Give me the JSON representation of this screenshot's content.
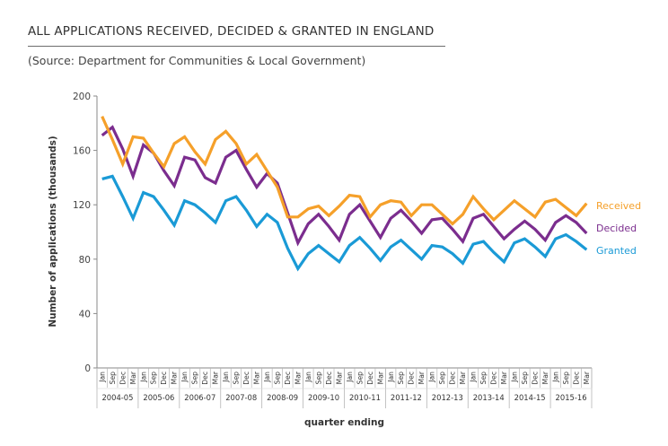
{
  "header": {
    "title": "ALL APPLICATIONS RECEIVED, DECIDED & GRANTED IN ENGLAND",
    "subtitle": "(Source: Department for Communities & Local Government)"
  },
  "chart_data": {
    "type": "line",
    "title": "ALL APPLICATIONS RECEIVED, DECIDED & GRANTED IN ENGLAND",
    "subtitle": "(Source: Department for Communities & Local Government)",
    "xlabel": "quarter ending",
    "ylabel": "Number of applications (thousands)",
    "ylim": [
      0,
      200
    ],
    "yticks": [
      0,
      40,
      80,
      120,
      160,
      200
    ],
    "grid": false,
    "legend": "right, at line ends",
    "quarters": [
      "Jan",
      "Sep",
      "Dec",
      "Mar"
    ],
    "years": [
      "2004-05",
      "2005-06",
      "2006-07",
      "2007-08",
      "2008-09",
      "2009-10",
      "2010-11",
      "2011-12",
      "2012-13",
      "2013-14",
      "2014-15",
      "2015-16"
    ],
    "categories": [
      "Jan 2004-05",
      "Sep 2004-05",
      "Dec 2004-05",
      "Mar 2004-05",
      "Jan 2005-06",
      "Sep 2005-06",
      "Dec 2005-06",
      "Mar 2005-06",
      "Jan 2006-07",
      "Sep 2006-07",
      "Dec 2006-07",
      "Mar 2006-07",
      "Jan 2007-08",
      "Sep 2007-08",
      "Dec 2007-08",
      "Mar 2007-08",
      "Jan 2008-09",
      "Sep 2008-09",
      "Dec 2008-09",
      "Mar 2008-09",
      "Jan 2009-10",
      "Sep 2009-10",
      "Dec 2009-10",
      "Mar 2009-10",
      "Jan 2010-11",
      "Sep 2010-11",
      "Dec 2010-11",
      "Mar 2010-11",
      "Jan 2011-12",
      "Sep 2011-12",
      "Dec 2011-12",
      "Mar 2011-12",
      "Jan 2012-13",
      "Sep 2012-13",
      "Dec 2012-13",
      "Mar 2012-13",
      "Jan 2013-14",
      "Sep 2013-14",
      "Dec 2013-14",
      "Mar 2013-14",
      "Jan 2014-15",
      "Sep 2014-15",
      "Dec 2014-15",
      "Mar 2014-15",
      "Jan 2015-16",
      "Sep 2015-16",
      "Dec 2015-16",
      "Mar 2015-16"
    ],
    "series": [
      {
        "name": "Received",
        "color": "#f5a02a",
        "values": [
          185,
          168,
          150,
          170,
          169,
          158,
          148,
          165,
          170,
          159,
          150,
          168,
          174,
          165,
          150,
          157,
          145,
          133,
          111,
          111,
          117,
          119,
          112,
          119,
          127,
          126,
          111,
          120,
          123,
          122,
          112,
          120,
          120,
          113,
          106,
          113,
          126,
          117,
          109,
          116,
          123,
          117,
          111,
          122,
          124,
          118,
          112,
          121
        ]
      },
      {
        "name": "Decided",
        "color": "#7b2d8e",
        "values": [
          171,
          177,
          161,
          141,
          164,
          158,
          145,
          134,
          155,
          153,
          140,
          136,
          155,
          160,
          146,
          133,
          143,
          136,
          114,
          92,
          106,
          113,
          104,
          94,
          113,
          120,
          108,
          96,
          110,
          116,
          108,
          99,
          109,
          110,
          102,
          93,
          110,
          113,
          104,
          95,
          102,
          108,
          102,
          94,
          107,
          112,
          107,
          99
        ]
      },
      {
        "name": "Granted",
        "color": "#1a9ad6",
        "values": [
          139,
          141,
          126,
          110,
          129,
          126,
          116,
          105,
          123,
          120,
          114,
          107,
          123,
          126,
          116,
          104,
          113,
          107,
          88,
          73,
          84,
          90,
          84,
          78,
          90,
          96,
          88,
          79,
          89,
          94,
          87,
          80,
          90,
          89,
          84,
          77,
          91,
          93,
          85,
          78,
          92,
          95,
          89,
          82,
          95,
          98,
          93,
          87
        ]
      }
    ]
  }
}
